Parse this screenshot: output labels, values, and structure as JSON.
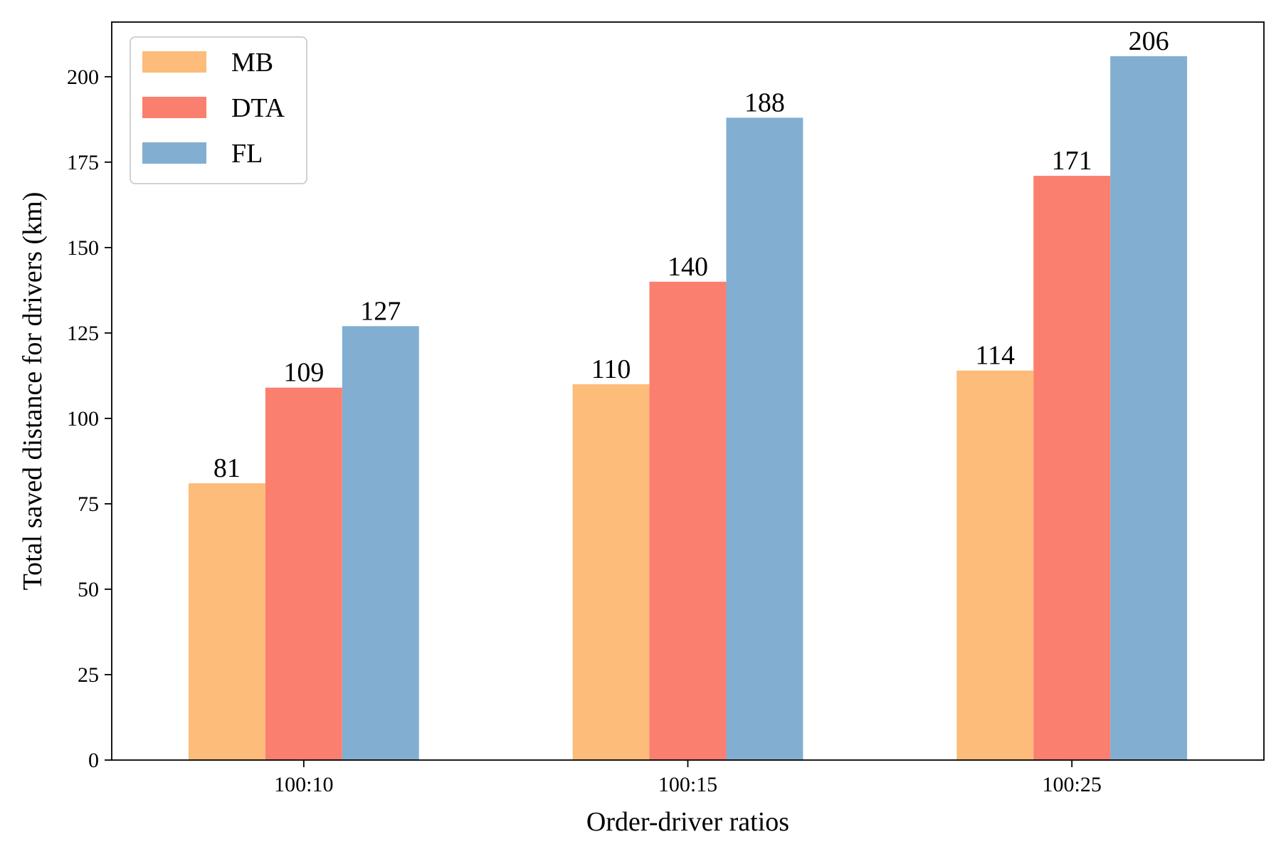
{
  "chart_data": {
    "type": "bar",
    "categories": [
      "100:10",
      "100:15",
      "100:25"
    ],
    "series": [
      {
        "name": "MB",
        "color": "#FDBC7A",
        "values": [
          81,
          110,
          114
        ]
      },
      {
        "name": "DTA",
        "color": "#FA7F6F",
        "values": [
          109,
          140,
          171
        ]
      },
      {
        "name": "FL",
        "color": "#82AFD1",
        "values": [
          127,
          188,
          206
        ]
      }
    ],
    "data_labels": [
      [
        "81",
        "110",
        "114"
      ],
      [
        "109",
        "140",
        "171"
      ],
      [
        "127",
        "188",
        "206"
      ]
    ],
    "xlabel": "Order-driver ratios",
    "ylabel": "Total saved distance for drivers (km)",
    "ylim": [
      0,
      216
    ],
    "yticks": [
      0,
      25,
      50,
      75,
      100,
      125,
      150,
      175,
      200
    ],
    "ytick_labels": [
      "0",
      "25",
      "50",
      "75",
      "100",
      "125",
      "150",
      "175",
      "200"
    ],
    "grid": false,
    "legend_position": "top-left"
  }
}
